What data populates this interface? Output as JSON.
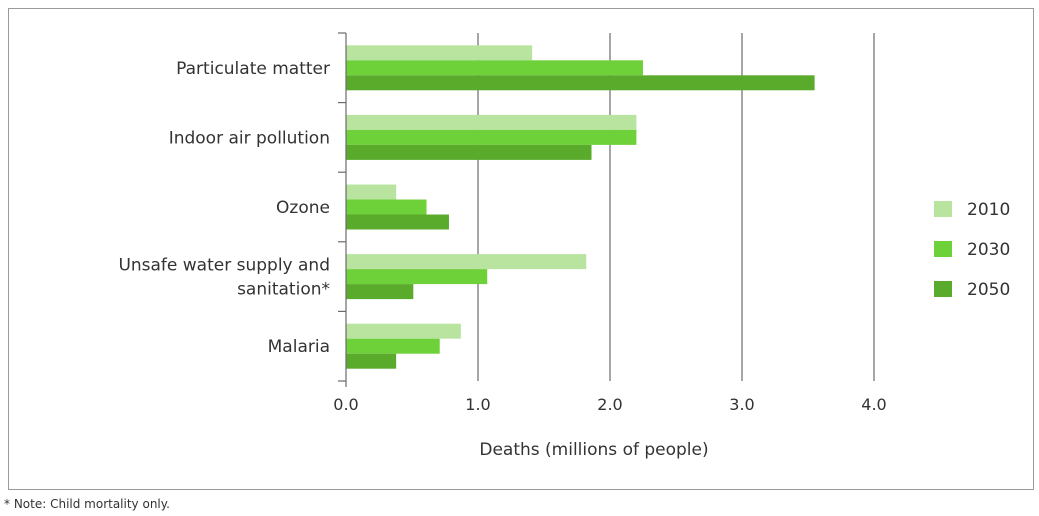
{
  "chart_data": {
    "type": "bar",
    "orientation": "horizontal",
    "categories": [
      "Particulate matter",
      "Indoor air pollution",
      "Ozone",
      "Unsafe water supply and sanitation*",
      "Malaria"
    ],
    "category_lines": [
      [
        "Particulate matter"
      ],
      [
        "Indoor air pollution"
      ],
      [
        "Ozone"
      ],
      [
        "Unsafe water supply and",
        "sanitation*"
      ],
      [
        "Malaria"
      ]
    ],
    "series": [
      {
        "name": "2010",
        "color": "#b8e4a0",
        "values": [
          1.41,
          2.2,
          0.38,
          1.82,
          0.87
        ]
      },
      {
        "name": "2030",
        "color": "#6fd13a",
        "values": [
          2.25,
          2.2,
          0.61,
          1.07,
          0.71
        ]
      },
      {
        "name": "2050",
        "color": "#5aab2c",
        "values": [
          3.55,
          1.86,
          0.78,
          0.51,
          0.38
        ]
      }
    ],
    "xlabel": "Deaths (millions of people)",
    "ylabel": "",
    "xlim": [
      0,
      4
    ],
    "xticks": [
      "0.0",
      "1.0",
      "2.0",
      "3.0",
      "4.0"
    ],
    "grid": "vertical",
    "legend_position": "right"
  },
  "footnote": "* Note: Child mortality only."
}
